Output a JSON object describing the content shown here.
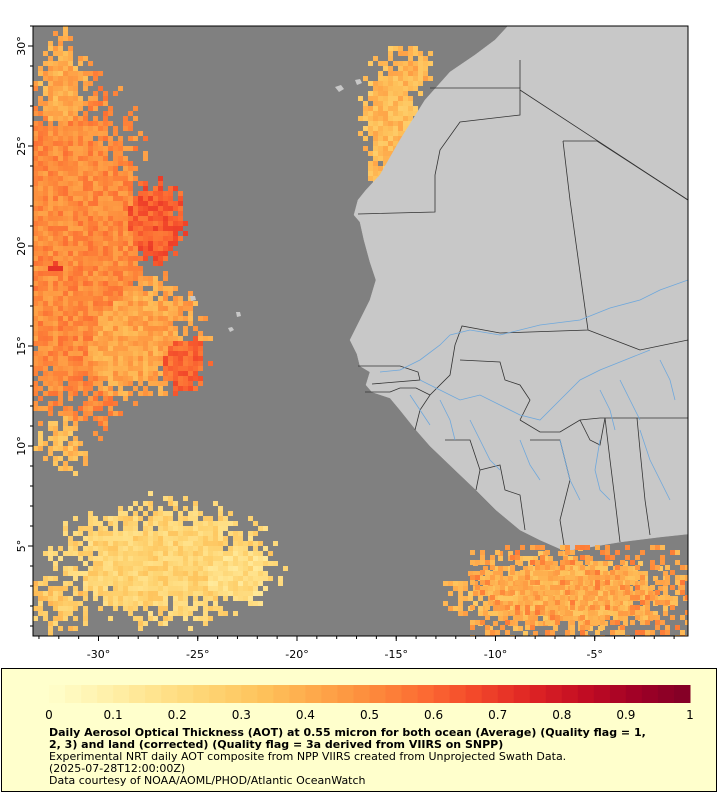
{
  "map": {
    "lon_range": [
      -33.3,
      -0.3
    ],
    "lat_range": [
      0.5,
      31.0
    ],
    "x_ticks": [
      {
        "value": -30,
        "label": "-30°"
      },
      {
        "value": -25,
        "label": "-25°"
      },
      {
        "value": -20,
        "label": "-20°"
      },
      {
        "value": -15,
        "label": "-15°"
      },
      {
        "value": -10,
        "label": "-10°"
      },
      {
        "value": -5,
        "label": "-5°"
      }
    ],
    "y_ticks": [
      {
        "value": 30,
        "label": "30°"
      },
      {
        "value": 25,
        "label": "25°"
      },
      {
        "value": 20,
        "label": "20°"
      },
      {
        "value": 15,
        "label": "15°"
      },
      {
        "value": 10,
        "label": "10°"
      },
      {
        "value": 5,
        "label": "5°"
      }
    ],
    "colors": {
      "ocean_no_data": "#808080",
      "land": "#c8c8c8",
      "border": "#333333",
      "river": "#6fa8dc"
    }
  },
  "colorbar": {
    "min": 0,
    "max": 1,
    "tick_labels": [
      "0",
      "0.1",
      "0.2",
      "0.3",
      "0.4",
      "0.5",
      "0.6",
      "0.7",
      "0.8",
      "0.9",
      "1"
    ],
    "colors": [
      "#ffffcc",
      "#fff2ad",
      "#ffe38d",
      "#fed472",
      "#fec25b",
      "#fea84a",
      "#fd8c3c",
      "#fc6c33",
      "#f2472a",
      "#df2524",
      "#c30d23",
      "#a00026",
      "#800026"
    ]
  },
  "legend": {
    "title_line1": "Daily Aerosol Optical Thickness (AOT) at 0.55 micron for both ocean (Average) (Quality flag = 1,",
    "title_line2": "2, 3) and land (corrected) (Quality flag = 3a derived from VIIRS on SNPP)",
    "line3": "Experimental NRT daily AOT composite from NPP VIIRS created from Unprojected Swath Data.",
    "line4": "(2025-07-28T12:00:00Z)",
    "line5": "Data courtesy of NOAA/AOML/PHOD/Atlantic OceanWatch"
  }
}
